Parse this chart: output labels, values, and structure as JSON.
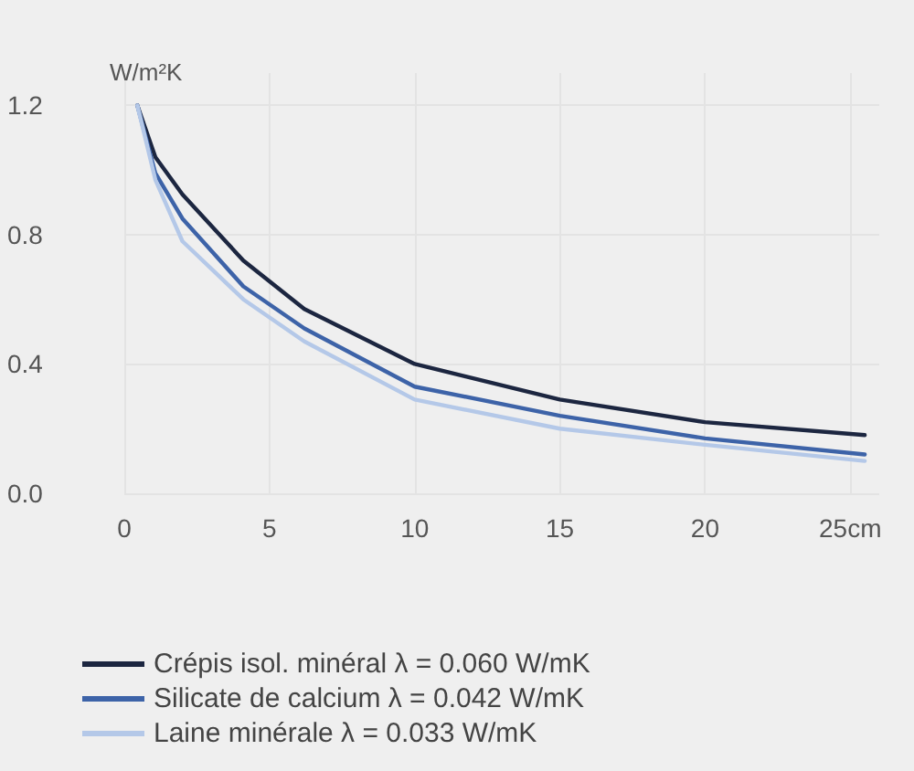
{
  "chart_data": {
    "type": "line",
    "ylabel": "W/m²K",
    "xlim": [
      0,
      26
    ],
    "xticks": [
      0,
      5,
      10,
      15,
      20,
      {
        "value": 25,
        "label": "25cm"
      }
    ],
    "ylim": [
      0,
      1.3
    ],
    "yticks": [
      {
        "value": 0,
        "label": "0.0"
      },
      0.4,
      0.8,
      1.2
    ],
    "grid": true,
    "legend": "bottom",
    "marker": "none",
    "line_style": "solid",
    "series": [
      {
        "name": "Crépis isol. minéral λ = 0.060 W/mK",
        "color": "#1c2640",
        "x": [
          0.45,
          1.07,
          2,
          4.1,
          6.2,
          10,
          15,
          20,
          25.5
        ],
        "values": [
          1.2,
          1.04,
          0.925,
          0.72,
          0.57,
          0.4,
          0.29,
          0.22,
          0.18
        ]
      },
      {
        "name": "Silicate de calcium λ = 0.042 W/mK",
        "color": "#3d63a8",
        "x": [
          0.45,
          1.07,
          2,
          4.1,
          6.2,
          10,
          15,
          20,
          25.5
        ],
        "values": [
          1.2,
          0.99,
          0.85,
          0.64,
          0.51,
          0.33,
          0.24,
          0.17,
          0.12
        ]
      },
      {
        "name": "Laine minérale λ = 0.033 W/mK",
        "color": "#b4c8e8",
        "x": [
          0.45,
          1.07,
          2,
          4.1,
          6.2,
          10,
          15,
          20,
          25.5
        ],
        "values": [
          1.2,
          0.97,
          0.78,
          0.6,
          0.47,
          0.29,
          0.2,
          0.15,
          0.1
        ]
      }
    ]
  }
}
